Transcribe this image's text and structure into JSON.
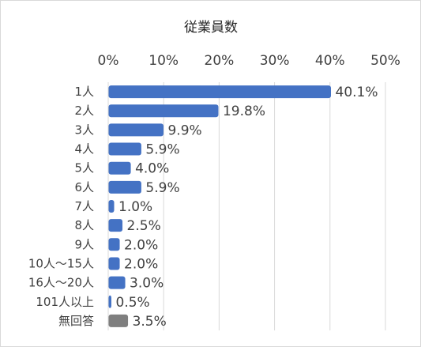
{
  "chart_data": {
    "type": "bar",
    "orientation": "horizontal",
    "title": "従業員数",
    "xlabel": "",
    "ylabel": "",
    "xlim": [
      0,
      50
    ],
    "x_ticks": [
      "0%",
      "10%",
      "20%",
      "30%",
      "40%",
      "50%"
    ],
    "x_axis_position": "top",
    "grid": true,
    "legend": "none",
    "categories": [
      "1人",
      "2人",
      "3人",
      "4人",
      "5人",
      "6人",
      "7人",
      "8人",
      "9人",
      "10人～15人",
      "16人～20人",
      "101人以上",
      "無回答"
    ],
    "values": [
      40.1,
      19.8,
      9.9,
      5.9,
      4.0,
      5.9,
      1.0,
      2.5,
      2.0,
      2.0,
      3.0,
      0.5,
      3.5
    ],
    "data_labels": [
      "40.1%",
      "19.8%",
      "9.9%",
      "5.9%",
      "4.0%",
      "5.9%",
      "1.0%",
      "2.5%",
      "2.0%",
      "2.0%",
      "3.0%",
      "0.5%",
      "3.5%"
    ],
    "colors": [
      "#4472c4",
      "#4472c4",
      "#4472c4",
      "#4472c4",
      "#4472c4",
      "#4472c4",
      "#4472c4",
      "#4472c4",
      "#4472c4",
      "#4472c4",
      "#4472c4",
      "#4472c4",
      "#7f7f7f"
    ]
  }
}
